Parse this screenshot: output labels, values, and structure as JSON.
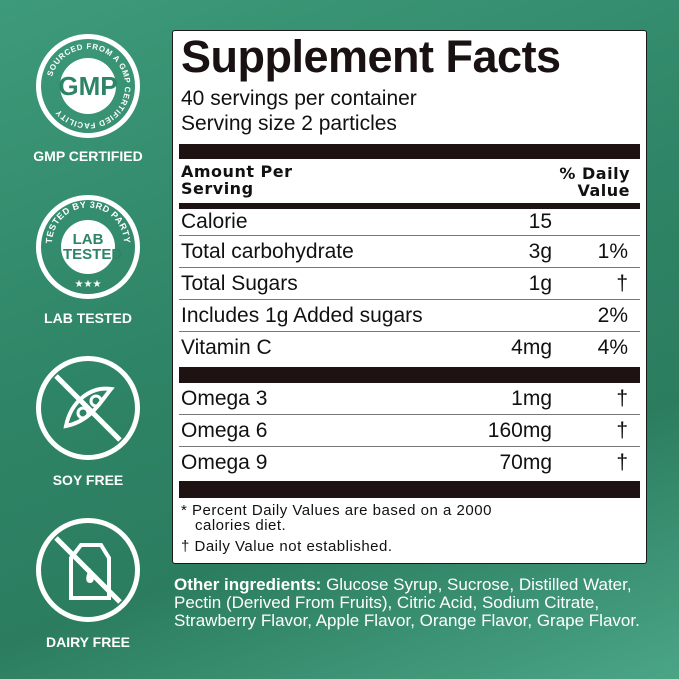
{
  "badges": [
    {
      "label": "GMP CERTIFIED",
      "ring_text": "SOURCED FROM A GMP CERTIFIED FACILITY",
      "center": "GMP",
      "icon": "gmp-seal-icon"
    },
    {
      "label": "LAB TESTED",
      "ring_text": "TESTED BY 3RD PARTY",
      "center": "LAB TESTED",
      "icon": "lab-tested-seal-icon"
    },
    {
      "label": "SOY FREE",
      "icon": "soy-free-icon"
    },
    {
      "label": "DAIRY FREE",
      "icon": "dairy-free-icon"
    }
  ],
  "facts": {
    "title": "Supplement Facts",
    "servings": "40 servings per container",
    "serving_size": "Serving size 2 particles",
    "header_left_1": "Amount Per",
    "header_left_2": "Serving",
    "header_right_1": "% Daily",
    "header_right_2": "Value",
    "rows": [
      {
        "name": "Calorie",
        "amount": "15",
        "dv": ""
      },
      {
        "name": "Total carbohydrate",
        "amount": "3g",
        "dv": "1%"
      },
      {
        "name": "Total Sugars",
        "amount": "1g",
        "dv": "†"
      },
      {
        "name": "Includes 1g Added sugars",
        "amount": "",
        "dv": "2%"
      },
      {
        "name": "Vitamin C",
        "amount": "4mg",
        "dv": "4%"
      }
    ],
    "rows2": [
      {
        "name": "Omega 3",
        "amount": "1mg",
        "dv": "†"
      },
      {
        "name": "Omega 6",
        "amount": "160mg",
        "dv": "†"
      },
      {
        "name": "Omega 9",
        "amount": "70mg",
        "dv": "†"
      }
    ],
    "footnote1a": "* Percent Daily Values are based on a 2000",
    "footnote1b": "calories diet.",
    "footnote2": "† Daily Value not established."
  },
  "ingredients": {
    "label": "Other ingredients:",
    "text": " Glucose Syrup, Sucrose, Distilled Water, Pectin (Derived From Fruits), Citric Acid, Sodium Citrate, Strawberry Flavor, Apple Flavor, Orange Flavor, Grape Flavor."
  }
}
